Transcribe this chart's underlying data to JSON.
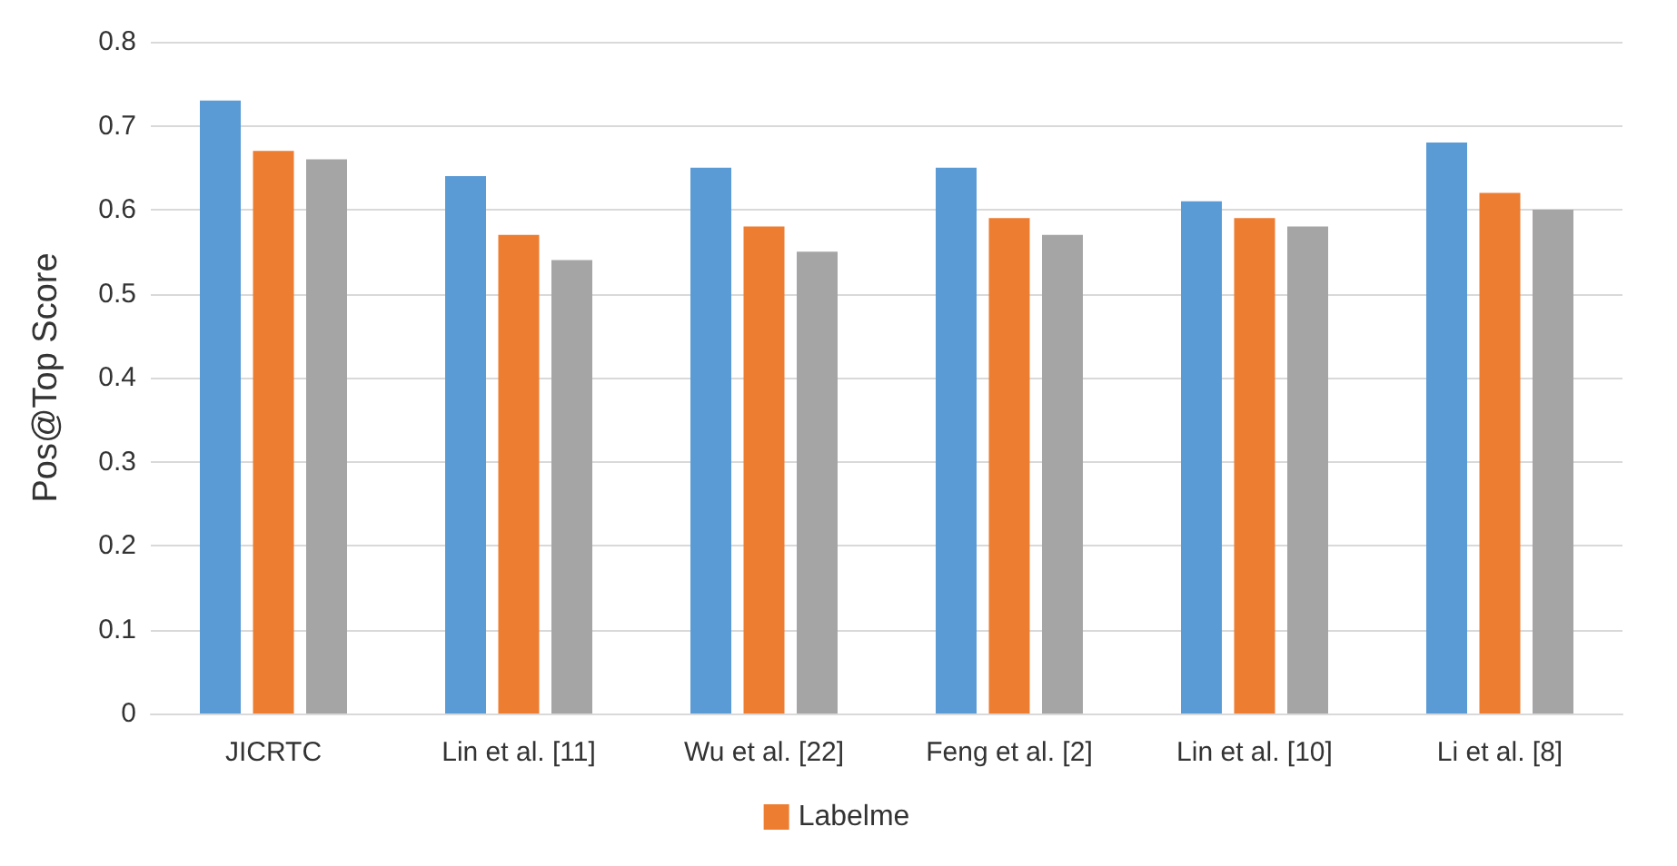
{
  "chart_data": {
    "type": "bar",
    "ylabel": "Pos@Top Score",
    "categories": [
      "JICRTC",
      "Lin et al. [11]",
      "Wu et al. [22]",
      "Feng et al. [2]",
      "Lin et al. [10]",
      "Li et al. [8]"
    ],
    "series": [
      {
        "color": "#5b9bd5",
        "values": [
          0.73,
          0.64,
          0.65,
          0.65,
          0.61,
          0.68
        ]
      },
      {
        "name": "Labelme",
        "color": "#ed7d31",
        "values": [
          0.67,
          0.57,
          0.58,
          0.59,
          0.59,
          0.62
        ]
      },
      {
        "color": "#a5a5a5",
        "values": [
          0.66,
          0.54,
          0.55,
          0.57,
          0.58,
          0.6
        ]
      }
    ],
    "ylim": [
      0,
      0.8
    ],
    "yticks": [
      0,
      0.1,
      0.2,
      0.3,
      0.4,
      0.5,
      0.6,
      0.7,
      0.8
    ],
    "grid": "y",
    "legend": "bottom"
  }
}
